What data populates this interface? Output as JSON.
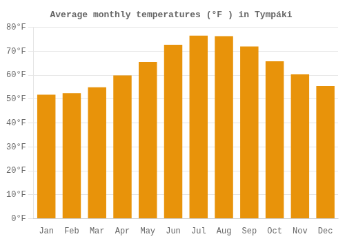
{
  "chart_data": {
    "type": "bar",
    "title": "Average monthly temperatures (°F ) in Tympáki",
    "categories": [
      "Jan",
      "Feb",
      "Mar",
      "Apr",
      "May",
      "Jun",
      "Jul",
      "Aug",
      "Sep",
      "Oct",
      "Nov",
      "Dec"
    ],
    "values": [
      51.8,
      52.5,
      54.9,
      59.9,
      65.5,
      72.7,
      76.5,
      76.3,
      72.0,
      65.8,
      60.3,
      55.4
    ],
    "color": "#E8930A",
    "ylim": [
      0,
      80
    ],
    "yticks": [
      {
        "value": 0,
        "label": "0°F"
      },
      {
        "value": 10,
        "label": "10°F"
      },
      {
        "value": 20,
        "label": "20°F"
      },
      {
        "value": 30,
        "label": "30°F"
      },
      {
        "value": 40,
        "label": "40°F"
      },
      {
        "value": 50,
        "label": "50°F"
      },
      {
        "value": 60,
        "label": "60°F"
      },
      {
        "value": 70,
        "label": "70°F"
      },
      {
        "value": 80,
        "label": "80°F"
      }
    ],
    "grid": true
  }
}
